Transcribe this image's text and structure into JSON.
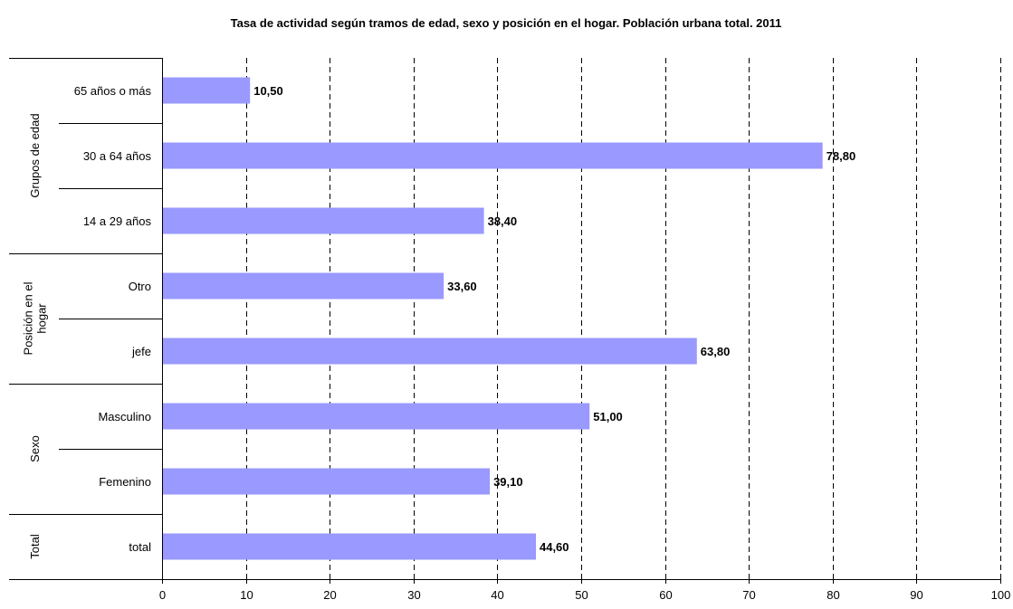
{
  "chart_data": {
    "type": "bar",
    "orientation": "horizontal",
    "title": "Tasa de actividad según tramos de edad, sexo y posición en el hogar. Población urbana total. 2011",
    "xlabel": "",
    "ylabel": "",
    "xlim": [
      0,
      100
    ],
    "x_ticks": [
      "0",
      "10",
      "20",
      "30",
      "40",
      "50",
      "60",
      "70",
      "80",
      "90",
      "100"
    ],
    "grid": "vertical dashed",
    "legend": "none",
    "bar_color": "#9999ff",
    "groups": [
      {
        "name": "Grupos de edad",
        "lines": [
          "Grupos de edad"
        ],
        "categories": [
          "65 años o más",
          "30 a 64 años",
          "14 a 29 años"
        ]
      },
      {
        "name": "Posición en el hogar",
        "lines": [
          "Posición en el",
          "hogar"
        ],
        "categories": [
          "Otro",
          "jefe"
        ]
      },
      {
        "name": "Sexo",
        "lines": [
          "Sexo"
        ],
        "categories": [
          "Masculino",
          "Femenino"
        ]
      },
      {
        "name": "Total",
        "lines": [
          "Total"
        ],
        "categories": [
          "total"
        ]
      }
    ],
    "categories": [
      "65 años o más",
      "30 a 64 años",
      "14 a 29 años",
      "Otro",
      "jefe",
      "Masculino",
      "Femenino",
      "total"
    ],
    "values": [
      10.5,
      78.8,
      38.4,
      33.6,
      63.8,
      51.0,
      39.1,
      44.6
    ],
    "data_labels": [
      "10,50",
      "78,80",
      "38,40",
      "33,60",
      "63,80",
      "51,00",
      "39,10",
      "44,60"
    ]
  }
}
